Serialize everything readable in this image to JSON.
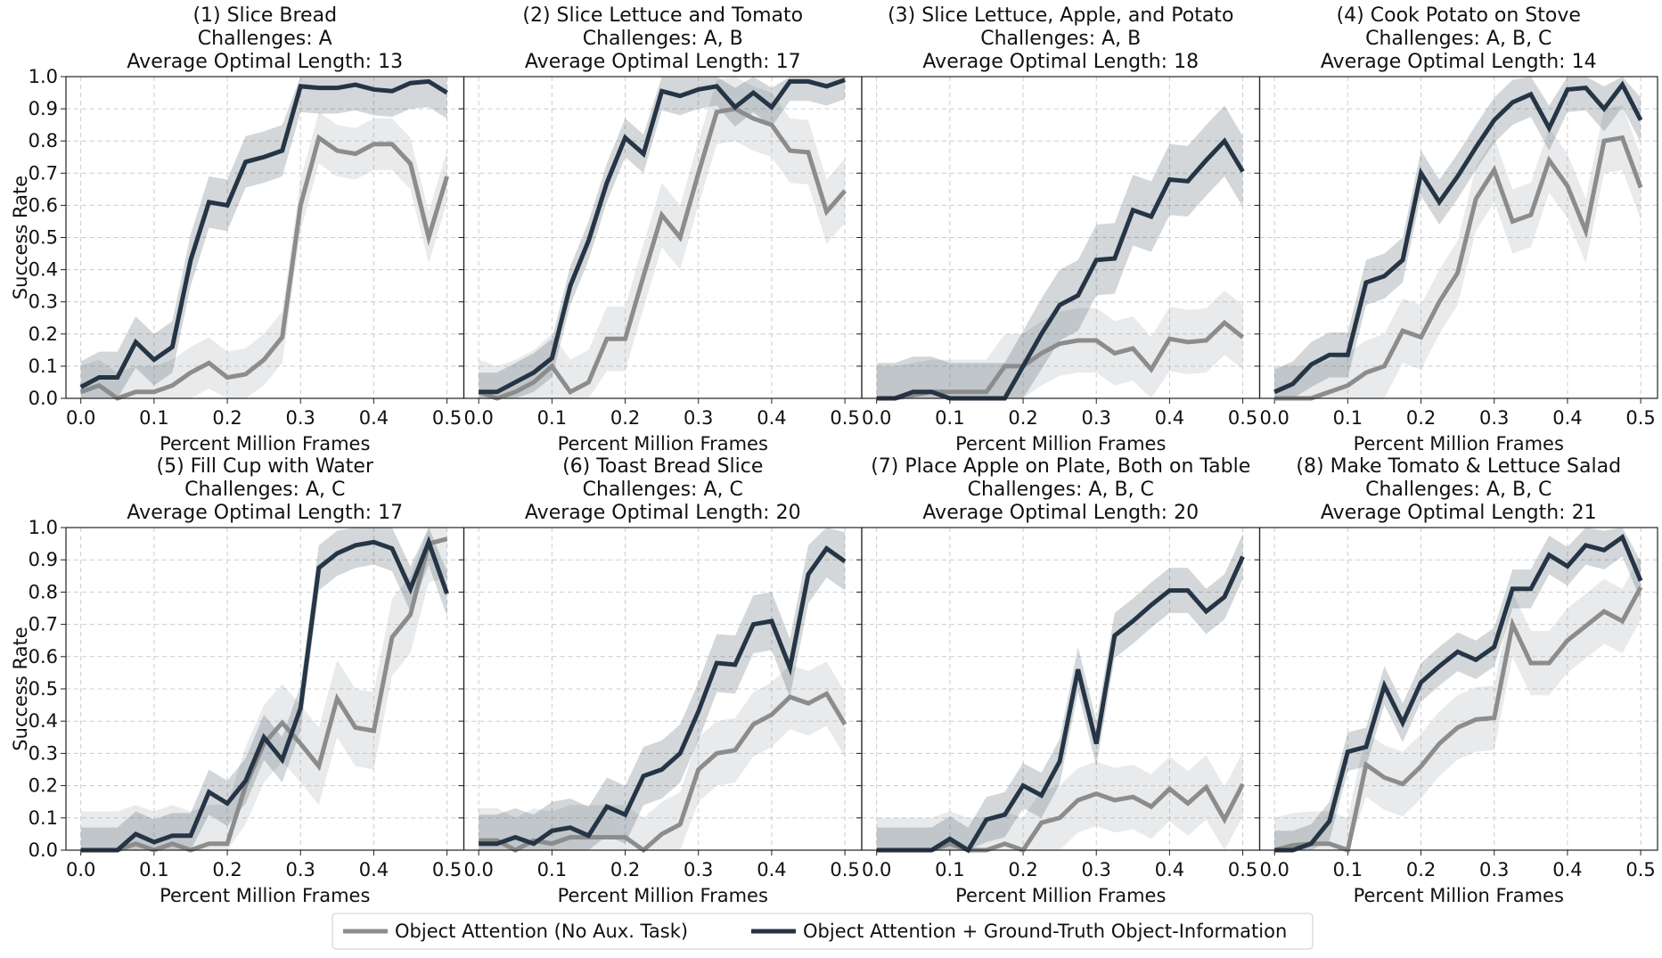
{
  "chart_data": {
    "type": "line",
    "layout": "2x4 grid of subplots",
    "shared_xlabel": "Percent Million Frames",
    "shared_ylabel": "Success Rate",
    "xlim": [
      0,
      0.5
    ],
    "ylim": [
      0,
      1.0
    ],
    "xticks": [
      "0.0",
      "0.1",
      "0.2",
      "0.3",
      "0.4",
      "0.5"
    ],
    "yticks": [
      "0.0",
      "0.1",
      "0.2",
      "0.3",
      "0.4",
      "0.5",
      "0.6",
      "0.7",
      "0.8",
      "0.9",
      "1.0"
    ],
    "grid": true,
    "legend_placement": "bottom-center",
    "x": [
      0,
      0.025,
      0.05,
      0.075,
      0.1,
      0.125,
      0.15,
      0.175,
      0.2,
      0.225,
      0.25,
      0.275,
      0.3,
      0.325,
      0.35,
      0.375,
      0.4,
      0.425,
      0.45,
      0.475,
      0.5
    ],
    "legend": [
      {
        "name": "Object Attention (No Aux. Task)",
        "color": "#8c8c8c"
      },
      {
        "name": "Object Attention + Ground-Truth Object-Information",
        "color": "#253545"
      }
    ],
    "panels": [
      {
        "title": "(1) Slice Bread",
        "challenges": "Challenges: A",
        "length": "Average Optimal Length: 13",
        "series": [
          {
            "name": "Object Attention (No Aux. Task)",
            "band": 0.08,
            "values": [
              0.02,
              0.04,
              0.0,
              0.02,
              0.02,
              0.04,
              0.08,
              0.11,
              0.065,
              0.075,
              0.12,
              0.19,
              0.6,
              0.81,
              0.77,
              0.76,
              0.79,
              0.79,
              0.73,
              0.5,
              0.69
            ]
          },
          {
            "name": "Object Attention + Ground-Truth Object-Information",
            "band": 0.08,
            "values": [
              0.035,
              0.065,
              0.065,
              0.175,
              0.12,
              0.16,
              0.43,
              0.61,
              0.6,
              0.735,
              0.75,
              0.77,
              0.97,
              0.965,
              0.965,
              0.975,
              0.96,
              0.955,
              0.98,
              0.985,
              0.95
            ]
          }
        ]
      },
      {
        "title": "(2) Slice Lettuce and Tomato",
        "challenges": "Challenges: A, B",
        "length": "Average Optimal Length: 17",
        "series": [
          {
            "name": "Object Attention (No Aux. Task)",
            "band": 0.1,
            "values": [
              0.02,
              0.0,
              0.02,
              0.05,
              0.1,
              0.02,
              0.05,
              0.185,
              0.185,
              0.38,
              0.57,
              0.5,
              0.7,
              0.89,
              0.9,
              0.87,
              0.85,
              0.77,
              0.765,
              0.58,
              0.645
            ]
          },
          {
            "name": "Object Attention + Ground-Truth Object-Information",
            "band": 0.06,
            "values": [
              0.02,
              0.02,
              0.05,
              0.08,
              0.125,
              0.35,
              0.49,
              0.67,
              0.81,
              0.76,
              0.955,
              0.94,
              0.96,
              0.97,
              0.905,
              0.95,
              0.905,
              0.985,
              0.985,
              0.97,
              0.99
            ]
          }
        ]
      },
      {
        "title": "(3) Slice Lettuce, Apple, and Potato",
        "challenges": "Challenges: A, B",
        "length": "Average Optimal Length: 18",
        "series": [
          {
            "name": "Object Attention (No Aux. Task)",
            "band": 0.1,
            "values": [
              0,
              0,
              0.01,
              0.02,
              0.02,
              0.02,
              0.02,
              0.1,
              0.1,
              0.14,
              0.17,
              0.18,
              0.18,
              0.14,
              0.155,
              0.09,
              0.185,
              0.175,
              0.18,
              0.235,
              0.19
            ]
          },
          {
            "name": "Object Attention + Ground-Truth Object-Information",
            "band": 0.11,
            "values": [
              0,
              0,
              0.02,
              0.02,
              0,
              0,
              0,
              0,
              0.1,
              0.2,
              0.29,
              0.32,
              0.43,
              0.435,
              0.585,
              0.565,
              0.68,
              0.675,
              0.74,
              0.8,
              0.705
            ]
          }
        ]
      },
      {
        "title": "(4) Cook Potato on Stove",
        "challenges": "Challenges: A, B, C",
        "length": "Average Optimal Length: 14",
        "series": [
          {
            "name": "Object Attention (No Aux. Task)",
            "band": 0.1,
            "values": [
              0,
              0,
              0,
              0.02,
              0.04,
              0.08,
              0.1,
              0.21,
              0.19,
              0.3,
              0.39,
              0.62,
              0.71,
              0.55,
              0.57,
              0.74,
              0.66,
              0.52,
              0.8,
              0.81,
              0.655
            ]
          },
          {
            "name": "Object Attention + Ground-Truth Object-Information",
            "band": 0.07,
            "values": [
              0.02,
              0.045,
              0.105,
              0.135,
              0.135,
              0.36,
              0.38,
              0.43,
              0.7,
              0.61,
              0.69,
              0.78,
              0.865,
              0.92,
              0.945,
              0.84,
              0.96,
              0.965,
              0.9,
              0.975,
              0.865
            ]
          }
        ]
      },
      {
        "title": "(5) Fill Cup with Water",
        "challenges": "Challenges: A, C",
        "length": "Average Optimal Length: 17",
        "series": [
          {
            "name": "Object Attention (No Aux. Task)",
            "band": 0.12,
            "values": [
              0,
              0,
              0,
              0.02,
              0.0,
              0.02,
              0.0,
              0.02,
              0.02,
              0.2,
              0.33,
              0.395,
              0.33,
              0.26,
              0.47,
              0.38,
              0.37,
              0.66,
              0.73,
              0.95,
              0.965
            ]
          },
          {
            "name": "Object Attention + Ground-Truth Object-Information",
            "band": 0.07,
            "values": [
              0,
              0,
              0,
              0.05,
              0.025,
              0.045,
              0.045,
              0.18,
              0.145,
              0.215,
              0.35,
              0.28,
              0.44,
              0.875,
              0.92,
              0.945,
              0.955,
              0.935,
              0.81,
              0.955,
              0.795
            ]
          }
        ]
      },
      {
        "title": "(6) Toast Bread Slice",
        "challenges": "Challenges: A, C",
        "length": "Average Optimal Length: 20",
        "series": [
          {
            "name": "Object Attention (No Aux. Task)",
            "band": 0.1,
            "values": [
              0.03,
              0.03,
              0.0,
              0.03,
              0.02,
              0.04,
              0.04,
              0.04,
              0.04,
              0.0,
              0.05,
              0.08,
              0.25,
              0.3,
              0.31,
              0.39,
              0.42,
              0.475,
              0.455,
              0.485,
              0.39
            ]
          },
          {
            "name": "Object Attention + Ground-Truth Object-Information",
            "band": 0.09,
            "values": [
              0.02,
              0.02,
              0.04,
              0.02,
              0.06,
              0.07,
              0.045,
              0.135,
              0.11,
              0.23,
              0.25,
              0.3,
              0.43,
              0.58,
              0.575,
              0.7,
              0.71,
              0.565,
              0.855,
              0.935,
              0.895
            ]
          }
        ]
      },
      {
        "title": "(7) Place Apple on Plate, Both on Table",
        "challenges": "Challenges: A, B, C",
        "length": "Average Optimal Length: 20",
        "series": [
          {
            "name": "Object Attention (No Aux. Task)",
            "band": 0.1,
            "values": [
              0,
              0,
              0,
              0,
              0.02,
              0,
              0,
              0.02,
              0,
              0.085,
              0.1,
              0.155,
              0.175,
              0.155,
              0.165,
              0.135,
              0.19,
              0.145,
              0.195,
              0.095,
              0.205
            ]
          },
          {
            "name": "Object Attention + Ground-Truth Object-Information",
            "band": 0.07,
            "values": [
              0,
              0,
              0,
              0,
              0.035,
              0,
              0.095,
              0.11,
              0.2,
              0.17,
              0.275,
              0.56,
              0.33,
              0.665,
              0.71,
              0.76,
              0.805,
              0.805,
              0.74,
              0.785,
              0.91
            ]
          }
        ]
      },
      {
        "title": "(8) Make Tomato & Lettuce Salad",
        "challenges": "Challenges: A, B, C",
        "length": "Average Optimal Length: 21",
        "series": [
          {
            "name": "Object Attention (No Aux. Task)",
            "band": 0.1,
            "values": [
              0,
              0.015,
              0.02,
              0.02,
              0,
              0.265,
              0.225,
              0.205,
              0.26,
              0.33,
              0.38,
              0.405,
              0.41,
              0.7,
              0.58,
              0.58,
              0.65,
              0.695,
              0.74,
              0.71,
              0.815
            ]
          },
          {
            "name": "Object Attention + Ground-Truth Object-Information",
            "band": 0.06,
            "values": [
              0,
              0,
              0.02,
              0.09,
              0.305,
              0.32,
              0.51,
              0.395,
              0.52,
              0.57,
              0.615,
              0.59,
              0.63,
              0.81,
              0.81,
              0.915,
              0.88,
              0.945,
              0.93,
              0.97,
              0.835
            ]
          }
        ]
      }
    ]
  }
}
